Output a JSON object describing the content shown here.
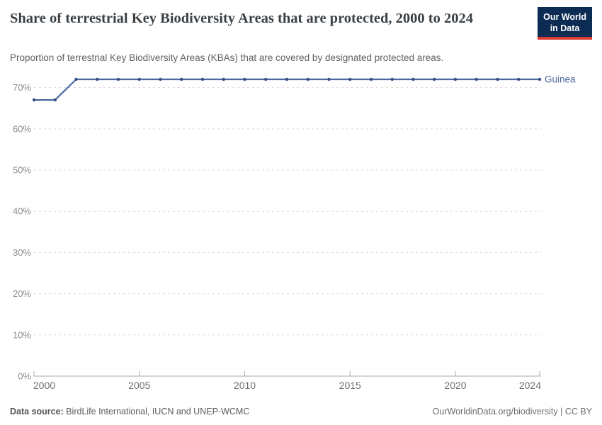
{
  "header": {
    "title": "Share of terrestrial Key Biodiversity Areas that are protected, 2000 to 2024",
    "subtitle": "Proportion of terrestrial Key Biodiversity Areas (KBAs) that are covered by designated protected areas.",
    "logo_line1": "Our World",
    "logo_line2": "in Data"
  },
  "chart_data": {
    "type": "line",
    "title": "Share of terrestrial Key Biodiversity Areas that are protected, 2000 to 2024",
    "xlabel": "",
    "ylabel": "",
    "x": [
      2000,
      2001,
      2002,
      2003,
      2004,
      2005,
      2006,
      2007,
      2008,
      2009,
      2010,
      2011,
      2012,
      2013,
      2014,
      2015,
      2016,
      2017,
      2018,
      2019,
      2020,
      2021,
      2022,
      2023,
      2024
    ],
    "series": [
      {
        "name": "Guinea",
        "color": "#4c6a9c",
        "values": [
          67,
          67,
          72,
          72,
          72,
          72,
          72,
          72,
          72,
          72,
          72,
          72,
          72,
          72,
          72,
          72,
          72,
          72,
          72,
          72,
          72,
          72,
          72,
          72,
          72
        ]
      }
    ],
    "xlim": [
      2000,
      2024
    ],
    "ylim": [
      0,
      72
    ],
    "xticks": [
      2000,
      2005,
      2010,
      2015,
      2020,
      2024
    ],
    "yticks": [
      0,
      10,
      20,
      30,
      40,
      50,
      60,
      70
    ],
    "ytick_suffix": "%",
    "grid": "dashed horizontal",
    "legend_position": "end-of-line label",
    "markers": "dot every year",
    "theme": {
      "line": "#4a6a9e",
      "marker": "#2f4f86",
      "grid": "#d9d9d9",
      "axis": "#a8a8a8",
      "ytick_text": "#8c8c8c",
      "xtick_text": "#6f6f6f"
    }
  },
  "footer": {
    "source_label": "Data source:",
    "source_text": "BirdLife International, IUCN and UNEP-WCMC",
    "right_text": "OurWorldinData.org/biodiversity | CC BY"
  }
}
